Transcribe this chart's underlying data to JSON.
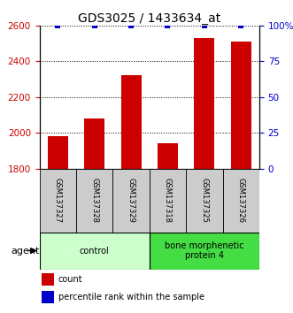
{
  "title": "GDS3025 / 1433634_at",
  "samples": [
    "GSM137327",
    "GSM137328",
    "GSM137329",
    "GSM137318",
    "GSM137325",
    "GSM137326"
  ],
  "counts": [
    1980,
    2080,
    2320,
    1940,
    2530,
    2510
  ],
  "percentile_ranks": [
    99.5,
    99.5,
    99.5,
    99.5,
    99.5,
    99.5
  ],
  "ylim_left": [
    1800,
    2600
  ],
  "ylim_right": [
    0,
    100
  ],
  "yticks_left": [
    1800,
    2000,
    2200,
    2400,
    2600
  ],
  "yticks_right": [
    0,
    25,
    50,
    75,
    100
  ],
  "bar_color": "#cc0000",
  "dot_color": "#0000cc",
  "groups": [
    {
      "label": "control",
      "indices": [
        0,
        1,
        2
      ],
      "color": "#ccffcc"
    },
    {
      "label": "bone morphenetic\nprotein 4",
      "indices": [
        3,
        4,
        5
      ],
      "color": "#44dd44"
    }
  ],
  "agent_label": "agent",
  "legend_count_label": "count",
  "legend_percentile_label": "percentile rank within the sample",
  "label_area_color": "#cccccc",
  "title_fontsize": 10,
  "tick_fontsize": 7.5,
  "bar_width": 0.55
}
